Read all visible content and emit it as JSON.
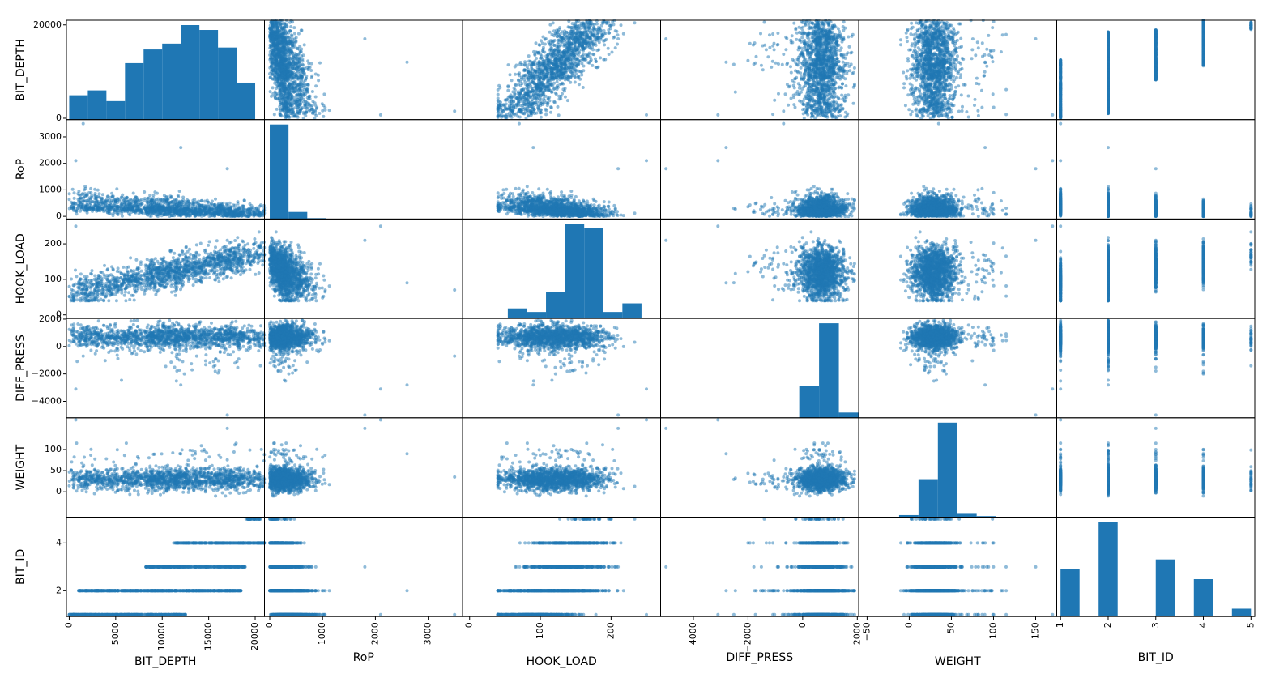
{
  "chart_data": {
    "type": "scatter-matrix",
    "variables": [
      "BIT_DEPTH",
      "RoP",
      "HOOK_LOAD",
      "DIFF_PRESS",
      "WEIGHT",
      "BIT_ID"
    ],
    "colors": {
      "marker": "#1f77b4",
      "bar": "#1f77b4",
      "frame": "#000000"
    },
    "ranges": {
      "BIT_DEPTH": [
        -300,
        21000
      ],
      "RoP": [
        -100,
        3650
      ],
      "HOOK_LOAD": [
        -10,
        270
      ],
      "DIFF_PRESS": [
        -5200,
        2050
      ],
      "WEIGHT": [
        -60,
        175
      ],
      "BIT_ID": [
        0.92,
        5.08
      ]
    },
    "ticks": {
      "BIT_DEPTH": [
        0,
        5000,
        10000,
        15000,
        20000
      ],
      "RoP": [
        0,
        1000,
        2000,
        3000
      ],
      "HOOK_LOAD": [
        0,
        100,
        200
      ],
      "DIFF_PRESS": [
        -4000,
        -2000,
        0,
        2000
      ],
      "WEIGHT": [
        -50,
        0,
        50,
        100,
        150
      ],
      "BIT_ID": [
        1,
        2,
        3,
        4,
        5
      ]
    },
    "y_ticks": {
      "BIT_DEPTH": [
        0,
        20000
      ],
      "RoP": [
        0,
        1000,
        2000,
        3000
      ],
      "HOOK_LOAD": [
        0,
        100,
        200
      ],
      "DIFF_PRESS": [
        -4000,
        -2000,
        0,
        2000
      ],
      "WEIGHT": [
        0,
        50,
        100
      ],
      "BIT_ID": [
        2,
        4
      ]
    },
    "histograms": {
      "BIT_DEPTH": {
        "edges": [
          0,
          2000,
          4000,
          6000,
          8000,
          10000,
          12000,
          14000,
          16000,
          18000,
          20000
        ],
        "counts": [
          250,
          300,
          190,
          580,
          720,
          780,
          970,
          920,
          740,
          380
        ]
      },
      "RoP": {
        "edges": [
          0,
          355,
          710,
          1065,
          1420,
          1775,
          2130,
          2485,
          2840,
          3195,
          3550
        ],
        "counts": [
          6700,
          500,
          60,
          10,
          4,
          2,
          1,
          1,
          0,
          1
        ]
      },
      "HOOK_LOAD": {
        "edges": [
          0,
          27,
          54,
          81,
          108,
          135,
          162,
          189,
          216,
          243,
          270
        ],
        "counts": [
          0,
          0,
          14,
          9,
          37,
          132,
          126,
          9,
          21,
          1
        ]
      },
      "DIFF_PRESS": {
        "edges": [
          -5200,
          -4475,
          -3750,
          -3025,
          -2300,
          -1575,
          -850,
          -125,
          600,
          1325,
          2050
        ],
        "counts": [
          0,
          0,
          0,
          0,
          0,
          0,
          0,
          12,
          36,
          2
        ]
      },
      "WEIGHT": {
        "edges": [
          -58,
          -35,
          -12,
          11,
          34,
          57,
          80,
          103,
          126,
          149,
          172
        ],
        "counts": [
          0,
          0,
          2,
          37,
          92,
          4,
          1,
          0,
          0,
          0
        ]
      },
      "BIT_ID": {
        "edges": [
          1,
          1.4,
          1.8,
          2.2,
          2.6,
          3.0,
          3.4,
          3.8,
          4.2,
          4.6,
          5.0
        ],
        "counts": [
          24,
          0,
          48,
          0,
          0,
          29,
          0,
          19,
          0,
          4
        ]
      }
    }
  }
}
